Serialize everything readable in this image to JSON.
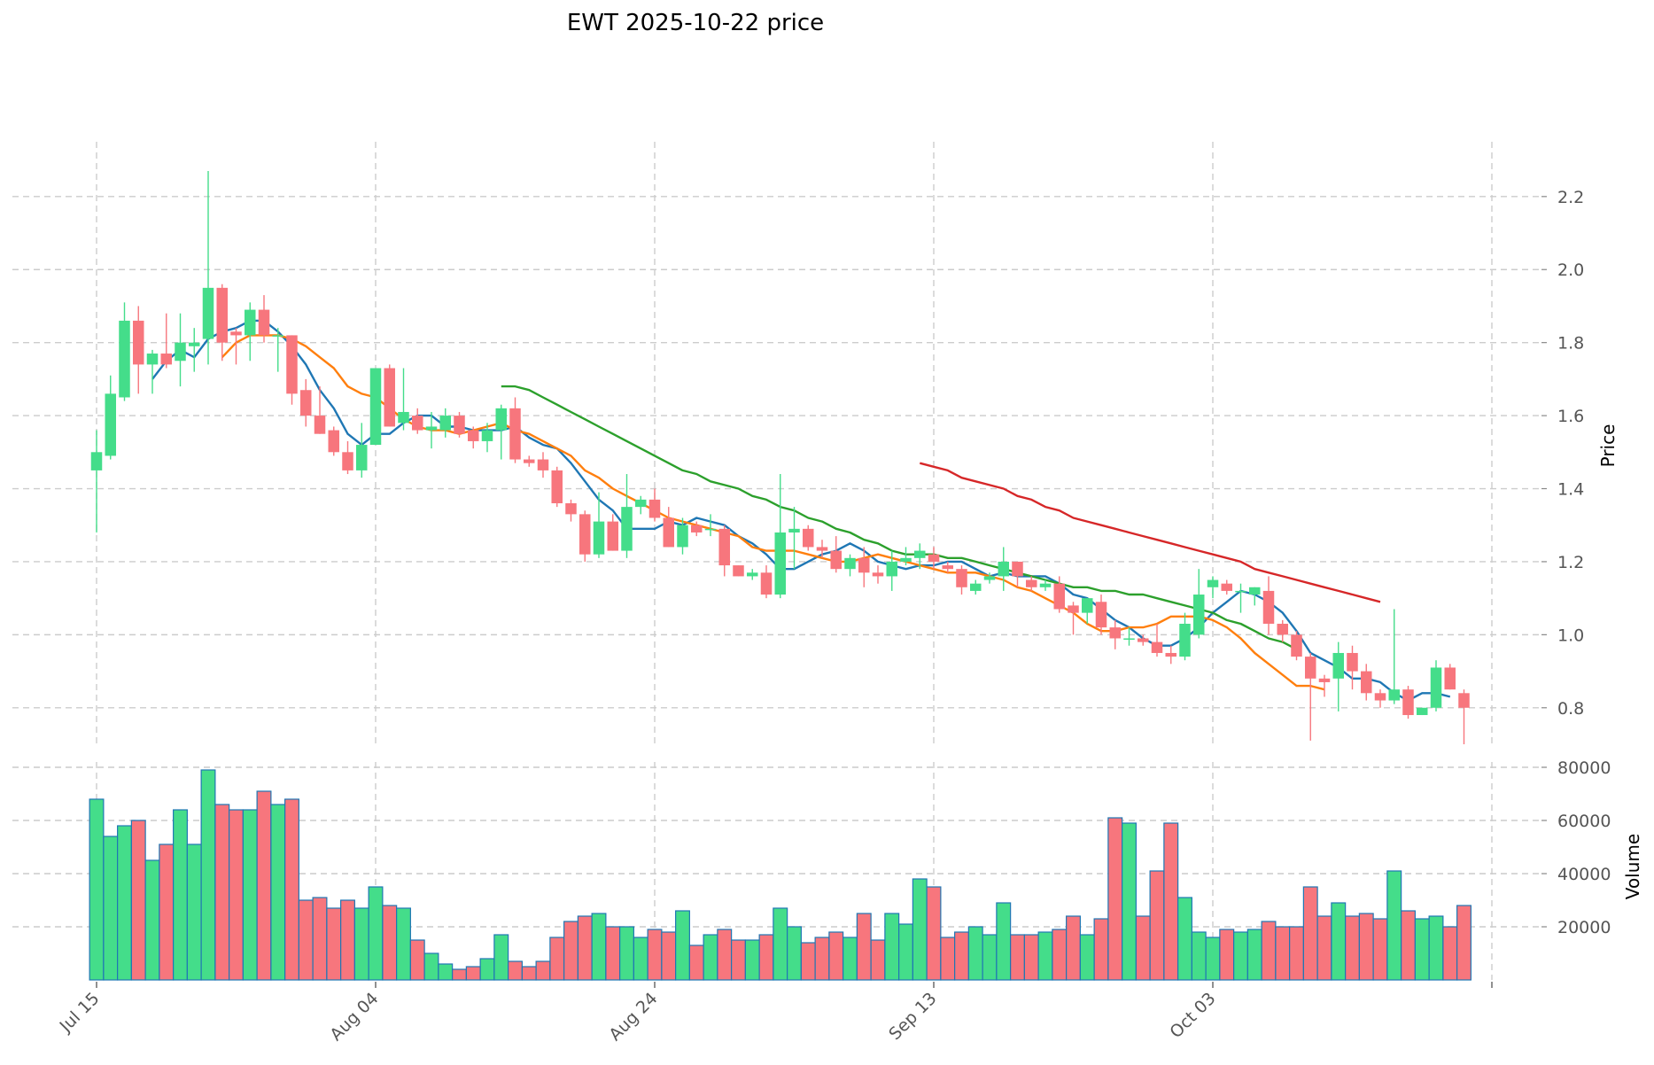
{
  "title": "EWT  2025-10-22  price",
  "colors": {
    "up": "#44dd8a",
    "down": "#f7767d",
    "ma_a": "#1f77b4",
    "ma_b": "#ff7f0e",
    "ma_c": "#2ca02c",
    "ma_d": "#d62728",
    "volume_edge": "#1f77b4",
    "grid": "#cccccc"
  },
  "chart_data": [
    {
      "type": "candlestick",
      "ylabel": "Price",
      "ylim": [
        0.7,
        2.35
      ],
      "yticks": [
        0.8,
        1.0,
        1.2,
        1.4,
        1.6,
        1.8,
        2.0,
        2.2
      ],
      "ytick_labels": [
        "0.8",
        "1.0",
        "1.2",
        "1.4",
        "1.6",
        "1.8",
        "2.0",
        "2.2"
      ],
      "x_tick_labels": [
        "Jul 15",
        "Aug 04",
        "Aug 24",
        "Sep 13",
        "Oct 03"
      ],
      "x_tick_indices": [
        0,
        20,
        40,
        60,
        80
      ],
      "grid": true,
      "candles": [
        [
          1.45,
          1.56,
          1.28,
          1.5
        ],
        [
          1.49,
          1.71,
          1.48,
          1.66
        ],
        [
          1.65,
          1.91,
          1.64,
          1.86
        ],
        [
          1.86,
          1.9,
          1.66,
          1.74
        ],
        [
          1.74,
          1.78,
          1.66,
          1.77
        ],
        [
          1.77,
          1.88,
          1.73,
          1.74
        ],
        [
          1.75,
          1.88,
          1.68,
          1.8
        ],
        [
          1.79,
          1.84,
          1.72,
          1.8
        ],
        [
          1.81,
          2.27,
          1.74,
          1.95
        ],
        [
          1.95,
          1.96,
          1.75,
          1.8
        ],
        [
          1.83,
          1.84,
          1.74,
          1.82
        ],
        [
          1.82,
          1.91,
          1.75,
          1.89
        ],
        [
          1.89,
          1.93,
          1.8,
          1.82
        ],
        [
          1.82,
          1.84,
          1.72,
          1.82
        ],
        [
          1.82,
          1.82,
          1.63,
          1.66
        ],
        [
          1.67,
          1.7,
          1.57,
          1.6
        ],
        [
          1.6,
          1.68,
          1.55,
          1.55
        ],
        [
          1.56,
          1.57,
          1.49,
          1.5
        ],
        [
          1.5,
          1.53,
          1.44,
          1.45
        ],
        [
          1.45,
          1.58,
          1.43,
          1.52
        ],
        [
          1.52,
          1.73,
          1.52,
          1.73
        ],
        [
          1.73,
          1.74,
          1.57,
          1.57
        ],
        [
          1.58,
          1.73,
          1.56,
          1.61
        ],
        [
          1.6,
          1.62,
          1.55,
          1.56
        ],
        [
          1.56,
          1.61,
          1.51,
          1.57
        ],
        [
          1.56,
          1.62,
          1.54,
          1.6
        ],
        [
          1.6,
          1.61,
          1.54,
          1.55
        ],
        [
          1.56,
          1.57,
          1.51,
          1.53
        ],
        [
          1.53,
          1.58,
          1.5,
          1.56
        ],
        [
          1.56,
          1.63,
          1.48,
          1.62
        ],
        [
          1.62,
          1.65,
          1.47,
          1.48
        ],
        [
          1.48,
          1.49,
          1.46,
          1.47
        ],
        [
          1.48,
          1.5,
          1.43,
          1.45
        ],
        [
          1.45,
          1.46,
          1.35,
          1.36
        ],
        [
          1.36,
          1.37,
          1.31,
          1.33
        ],
        [
          1.33,
          1.34,
          1.2,
          1.22
        ],
        [
          1.22,
          1.39,
          1.21,
          1.31
        ],
        [
          1.31,
          1.33,
          1.23,
          1.23
        ],
        [
          1.23,
          1.44,
          1.21,
          1.35
        ],
        [
          1.35,
          1.38,
          1.33,
          1.37
        ],
        [
          1.37,
          1.4,
          1.31,
          1.32
        ],
        [
          1.32,
          1.35,
          1.24,
          1.24
        ],
        [
          1.24,
          1.32,
          1.22,
          1.3
        ],
        [
          1.3,
          1.31,
          1.27,
          1.28
        ],
        [
          1.29,
          1.33,
          1.27,
          1.29
        ],
        [
          1.29,
          1.3,
          1.16,
          1.19
        ],
        [
          1.19,
          1.19,
          1.16,
          1.16
        ],
        [
          1.16,
          1.18,
          1.15,
          1.17
        ],
        [
          1.17,
          1.19,
          1.1,
          1.11
        ],
        [
          1.11,
          1.44,
          1.1,
          1.28
        ],
        [
          1.28,
          1.35,
          1.18,
          1.29
        ],
        [
          1.29,
          1.3,
          1.23,
          1.24
        ],
        [
          1.24,
          1.26,
          1.21,
          1.23
        ],
        [
          1.23,
          1.27,
          1.17,
          1.18
        ],
        [
          1.18,
          1.22,
          1.16,
          1.21
        ],
        [
          1.21,
          1.24,
          1.13,
          1.17
        ],
        [
          1.17,
          1.19,
          1.14,
          1.16
        ],
        [
          1.16,
          1.23,
          1.12,
          1.2
        ],
        [
          1.2,
          1.24,
          1.19,
          1.21
        ],
        [
          1.21,
          1.25,
          1.18,
          1.23
        ],
        [
          1.22,
          1.24,
          1.18,
          1.2
        ],
        [
          1.19,
          1.2,
          1.17,
          1.18
        ],
        [
          1.18,
          1.19,
          1.11,
          1.13
        ],
        [
          1.12,
          1.15,
          1.11,
          1.14
        ],
        [
          1.15,
          1.17,
          1.14,
          1.16
        ],
        [
          1.16,
          1.24,
          1.12,
          1.2
        ],
        [
          1.2,
          1.2,
          1.13,
          1.16
        ],
        [
          1.15,
          1.16,
          1.12,
          1.13
        ],
        [
          1.13,
          1.15,
          1.12,
          1.14
        ],
        [
          1.14,
          1.16,
          1.06,
          1.07
        ],
        [
          1.08,
          1.09,
          1.0,
          1.06
        ],
        [
          1.06,
          1.1,
          1.03,
          1.1
        ],
        [
          1.09,
          1.11,
          1.0,
          1.02
        ],
        [
          1.02,
          1.04,
          0.96,
          0.99
        ],
        [
          0.99,
          1.02,
          0.97,
          0.99
        ],
        [
          0.99,
          1.0,
          0.97,
          0.98
        ],
        [
          0.98,
          1.03,
          0.94,
          0.95
        ],
        [
          0.95,
          0.97,
          0.92,
          0.94
        ],
        [
          0.94,
          1.06,
          0.93,
          1.03
        ],
        [
          1.0,
          1.18,
          0.99,
          1.11
        ],
        [
          1.13,
          1.16,
          1.1,
          1.15
        ],
        [
          1.14,
          1.15,
          1.11,
          1.12
        ],
        [
          1.12,
          1.14,
          1.06,
          1.12
        ],
        [
          1.11,
          1.13,
          1.08,
          1.13
        ],
        [
          1.12,
          1.16,
          1.0,
          1.03
        ],
        [
          1.03,
          1.04,
          0.98,
          1.0
        ],
        [
          1.0,
          1.01,
          0.93,
          0.94
        ],
        [
          0.94,
          0.95,
          0.71,
          0.88
        ],
        [
          0.88,
          0.89,
          0.83,
          0.87
        ],
        [
          0.88,
          0.98,
          0.79,
          0.95
        ],
        [
          0.95,
          0.97,
          0.85,
          0.9
        ],
        [
          0.9,
          0.92,
          0.82,
          0.84
        ],
        [
          0.84,
          0.85,
          0.8,
          0.82
        ],
        [
          0.82,
          1.07,
          0.81,
          0.85
        ],
        [
          0.85,
          0.86,
          0.77,
          0.78
        ],
        [
          0.78,
          0.8,
          0.78,
          0.8
        ],
        [
          0.8,
          0.93,
          0.79,
          0.91
        ],
        [
          0.91,
          0.92,
          0.85,
          0.85
        ],
        [
          0.84,
          0.85,
          0.7,
          0.8
        ]
      ],
      "series": [
        {
          "color": "ma_a",
          "start": 4,
          "values": [
            1.7,
            1.75,
            1.78,
            1.76,
            1.81,
            1.83,
            1.84,
            1.86,
            1.86,
            1.83,
            1.79,
            1.74,
            1.67,
            1.62,
            1.55,
            1.52,
            1.55,
            1.55,
            1.58,
            1.6,
            1.6,
            1.57,
            1.57,
            1.56,
            1.56,
            1.56,
            1.57,
            1.54,
            1.52,
            1.51,
            1.47,
            1.42,
            1.37,
            1.34,
            1.29,
            1.29,
            1.29,
            1.31,
            1.3,
            1.32,
            1.31,
            1.3,
            1.27,
            1.25,
            1.22,
            1.18,
            1.18,
            1.2,
            1.22,
            1.23,
            1.25,
            1.23,
            1.2,
            1.19,
            1.18,
            1.19,
            1.19,
            1.2,
            1.2,
            1.18,
            1.16,
            1.17,
            1.16,
            1.16,
            1.16,
            1.14,
            1.11,
            1.1,
            1.07,
            1.04,
            1.02,
            0.99,
            0.97,
            0.97,
            0.99,
            1.02,
            1.06,
            1.09,
            1.12,
            1.11,
            1.09,
            1.06,
            1.01,
            0.95,
            0.93,
            0.91,
            0.88,
            0.88,
            0.87,
            0.84,
            0.82,
            0.84,
            0.84,
            0.83
          ]
        },
        {
          "color": "ma_b",
          "start": 9,
          "values": [
            1.76,
            1.8,
            1.82,
            1.82,
            1.82,
            1.81,
            1.79,
            1.76,
            1.73,
            1.68,
            1.66,
            1.65,
            1.62,
            1.59,
            1.57,
            1.56,
            1.56,
            1.55,
            1.56,
            1.57,
            1.58,
            1.56,
            1.55,
            1.53,
            1.51,
            1.49,
            1.45,
            1.43,
            1.4,
            1.38,
            1.36,
            1.34,
            1.32,
            1.31,
            1.3,
            1.29,
            1.28,
            1.27,
            1.24,
            1.23,
            1.23,
            1.23,
            1.22,
            1.21,
            1.2,
            1.2,
            1.21,
            1.22,
            1.21,
            1.2,
            1.19,
            1.18,
            1.17,
            1.17,
            1.17,
            1.16,
            1.15,
            1.13,
            1.12,
            1.1,
            1.08,
            1.06,
            1.03,
            1.01,
            1.01,
            1.02,
            1.02,
            1.03,
            1.05,
            1.05,
            1.05,
            1.04,
            1.02,
            0.99,
            0.95,
            0.92,
            0.89,
            0.86,
            0.86,
            0.85
          ]
        },
        {
          "color": "ma_c",
          "start": 29,
          "values": [
            1.68,
            1.68,
            1.67,
            1.65,
            1.63,
            1.61,
            1.59,
            1.57,
            1.55,
            1.53,
            1.51,
            1.49,
            1.47,
            1.45,
            1.44,
            1.42,
            1.41,
            1.4,
            1.38,
            1.37,
            1.35,
            1.34,
            1.32,
            1.31,
            1.29,
            1.28,
            1.26,
            1.25,
            1.23,
            1.22,
            1.22,
            1.22,
            1.21,
            1.21,
            1.2,
            1.19,
            1.18,
            1.17,
            1.16,
            1.15,
            1.14,
            1.13,
            1.13,
            1.12,
            1.12,
            1.11,
            1.11,
            1.1,
            1.09,
            1.08,
            1.07,
            1.06,
            1.04,
            1.03,
            1.01,
            0.99,
            0.98,
            0.96
          ]
        },
        {
          "color": "ma_d",
          "start": 59,
          "values": [
            1.47,
            1.46,
            1.45,
            1.43,
            1.42,
            1.41,
            1.4,
            1.38,
            1.37,
            1.35,
            1.34,
            1.32,
            1.31,
            1.3,
            1.29,
            1.28,
            1.27,
            1.26,
            1.25,
            1.24,
            1.23,
            1.22,
            1.21,
            1.2,
            1.18,
            1.17,
            1.16,
            1.15,
            1.14,
            1.13,
            1.12,
            1.11,
            1.1,
            1.09
          ]
        }
      ]
    },
    {
      "type": "bar",
      "ylabel": "Volume",
      "ylim": [
        0,
        82000
      ],
      "yticks": [
        20000,
        40000,
        60000,
        80000
      ],
      "ytick_labels": [
        "20000",
        "40000",
        "60000",
        "80000"
      ],
      "grid": true,
      "values": [
        68000,
        54000,
        58000,
        60000,
        45000,
        51000,
        64000,
        51000,
        79000,
        66000,
        64000,
        64000,
        71000,
        66000,
        68000,
        30000,
        31000,
        27000,
        30000,
        27000,
        35000,
        28000,
        27000,
        15000,
        10000,
        6000,
        4000,
        5000,
        8000,
        17000,
        7000,
        5000,
        7000,
        16000,
        22000,
        24000,
        25000,
        20000,
        20000,
        16000,
        19000,
        18000,
        26000,
        13000,
        17000,
        19000,
        15000,
        15000,
        17000,
        27000,
        20000,
        14000,
        16000,
        18000,
        16000,
        25000,
        15000,
        25000,
        21000,
        38000,
        35000,
        16000,
        18000,
        20000,
        17000,
        29000,
        17000,
        17000,
        18000,
        19000,
        24000,
        17000,
        23000,
        61000,
        59000,
        24000,
        41000,
        59000,
        31000,
        18000,
        16000,
        19000,
        18000,
        19000,
        22000,
        20000,
        20000,
        35000,
        24000,
        29000,
        24000,
        25000,
        23000,
        41000,
        26000,
        23000,
        24000,
        20000,
        28000
      ]
    }
  ]
}
